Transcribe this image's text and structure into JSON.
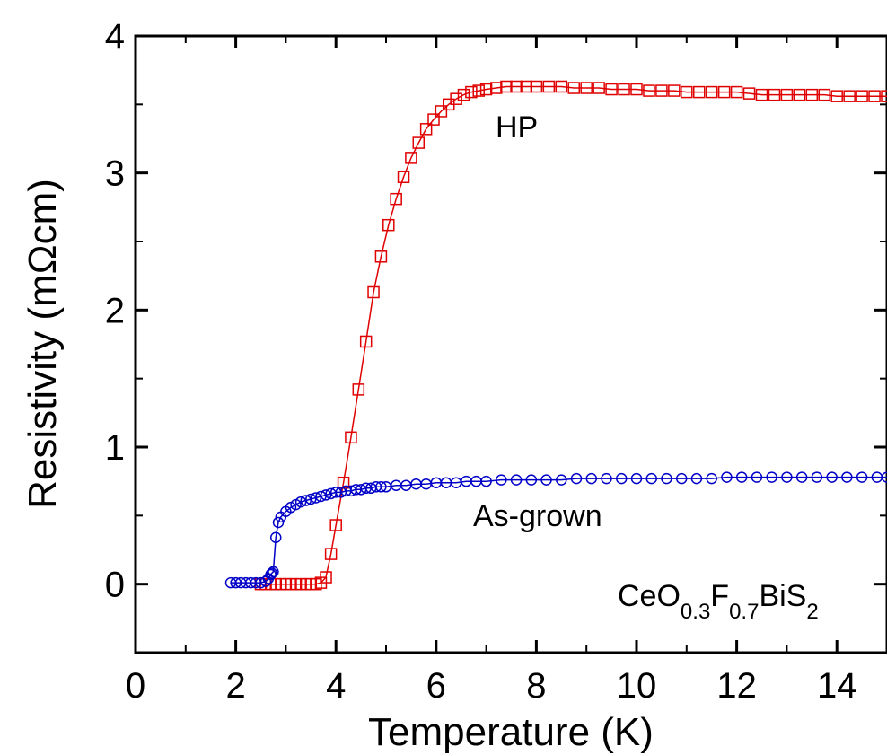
{
  "chart_data": {
    "type": "scatter",
    "title": "",
    "xlabel": "Temperature (K)",
    "ylabel": "Resistivity (mΩcm)",
    "xlim": [
      0,
      15
    ],
    "ylim": [
      -0.5,
      4
    ],
    "xticks": [
      "0",
      "2",
      "4",
      "6",
      "8",
      "10",
      "12",
      "14"
    ],
    "yticks": [
      "0",
      "1",
      "2",
      "3",
      "4"
    ],
    "grid": false,
    "legend": "none",
    "annotations": {
      "hp": "HP",
      "asgrown": "As-grown",
      "formula_parts": [
        "CeO",
        "0.3",
        "F",
        "0.7",
        "BiS",
        "2"
      ]
    },
    "series": [
      {
        "name": "HP",
        "color": "#e00000",
        "marker": "square",
        "x": [
          2.5,
          2.6,
          2.7,
          2.8,
          2.9,
          3.0,
          3.1,
          3.2,
          3.3,
          3.4,
          3.5,
          3.6,
          3.7,
          3.8,
          3.9,
          4.0,
          4.15,
          4.3,
          4.45,
          4.6,
          4.75,
          4.9,
          5.05,
          5.2,
          5.35,
          5.5,
          5.65,
          5.8,
          5.95,
          6.1,
          6.25,
          6.4,
          6.55,
          6.7,
          6.85,
          7.0,
          7.2,
          7.4,
          7.6,
          7.8,
          8.0,
          8.25,
          8.5,
          8.75,
          9.0,
          9.25,
          9.5,
          9.75,
          10.0,
          10.25,
          10.5,
          10.75,
          11.0,
          11.25,
          11.5,
          11.75,
          12.0,
          12.25,
          12.5,
          12.75,
          13.0,
          13.25,
          13.5,
          13.75,
          14.0,
          14.25,
          14.5,
          14.75,
          15.0
        ],
        "y": [
          0.0,
          0.0,
          0.0,
          0.0,
          0.0,
          0.0,
          0.0,
          0.0,
          0.0,
          0.0,
          0.0,
          0.0,
          0.01,
          0.05,
          0.22,
          0.43,
          0.74,
          1.07,
          1.42,
          1.77,
          2.13,
          2.39,
          2.62,
          2.81,
          2.97,
          3.11,
          3.22,
          3.32,
          3.39,
          3.45,
          3.5,
          3.54,
          3.57,
          3.59,
          3.6,
          3.61,
          3.62,
          3.63,
          3.63,
          3.63,
          3.63,
          3.63,
          3.63,
          3.62,
          3.62,
          3.62,
          3.61,
          3.61,
          3.61,
          3.6,
          3.6,
          3.6,
          3.59,
          3.59,
          3.59,
          3.59,
          3.59,
          3.58,
          3.57,
          3.57,
          3.57,
          3.57,
          3.57,
          3.57,
          3.56,
          3.56,
          3.56,
          3.56,
          3.56
        ]
      },
      {
        "name": "As-grown",
        "color": "#0000c8",
        "marker": "circle",
        "x": [
          1.9,
          2.0,
          2.1,
          2.2,
          2.3,
          2.4,
          2.5,
          2.6,
          2.65,
          2.7,
          2.72,
          2.75,
          2.8,
          2.85,
          2.9,
          3.0,
          3.1,
          3.2,
          3.3,
          3.4,
          3.5,
          3.6,
          3.7,
          3.8,
          3.9,
          4.0,
          4.1,
          4.2,
          4.3,
          4.4,
          4.5,
          4.6,
          4.7,
          4.8,
          4.9,
          5.0,
          5.2,
          5.4,
          5.6,
          5.8,
          6.0,
          6.2,
          6.4,
          6.6,
          6.8,
          7.0,
          7.3,
          7.6,
          7.9,
          8.2,
          8.5,
          8.8,
          9.1,
          9.4,
          9.7,
          10.0,
          10.3,
          10.6,
          10.9,
          11.2,
          11.5,
          11.8,
          12.1,
          12.4,
          12.7,
          13.0,
          13.3,
          13.6,
          13.9,
          14.2,
          14.5,
          14.8,
          15.0
        ],
        "y": [
          0.01,
          0.01,
          0.01,
          0.01,
          0.01,
          0.01,
          0.01,
          0.02,
          0.04,
          0.07,
          0.08,
          0.09,
          0.34,
          0.45,
          0.49,
          0.53,
          0.56,
          0.58,
          0.6,
          0.61,
          0.62,
          0.63,
          0.64,
          0.65,
          0.66,
          0.67,
          0.67,
          0.68,
          0.68,
          0.69,
          0.69,
          0.7,
          0.7,
          0.71,
          0.71,
          0.71,
          0.72,
          0.72,
          0.73,
          0.73,
          0.74,
          0.74,
          0.74,
          0.75,
          0.75,
          0.75,
          0.76,
          0.76,
          0.76,
          0.76,
          0.76,
          0.77,
          0.77,
          0.77,
          0.77,
          0.77,
          0.77,
          0.77,
          0.77,
          0.77,
          0.77,
          0.78,
          0.78,
          0.78,
          0.78,
          0.78,
          0.78,
          0.78,
          0.78,
          0.78,
          0.78,
          0.78,
          0.78
        ]
      }
    ]
  }
}
